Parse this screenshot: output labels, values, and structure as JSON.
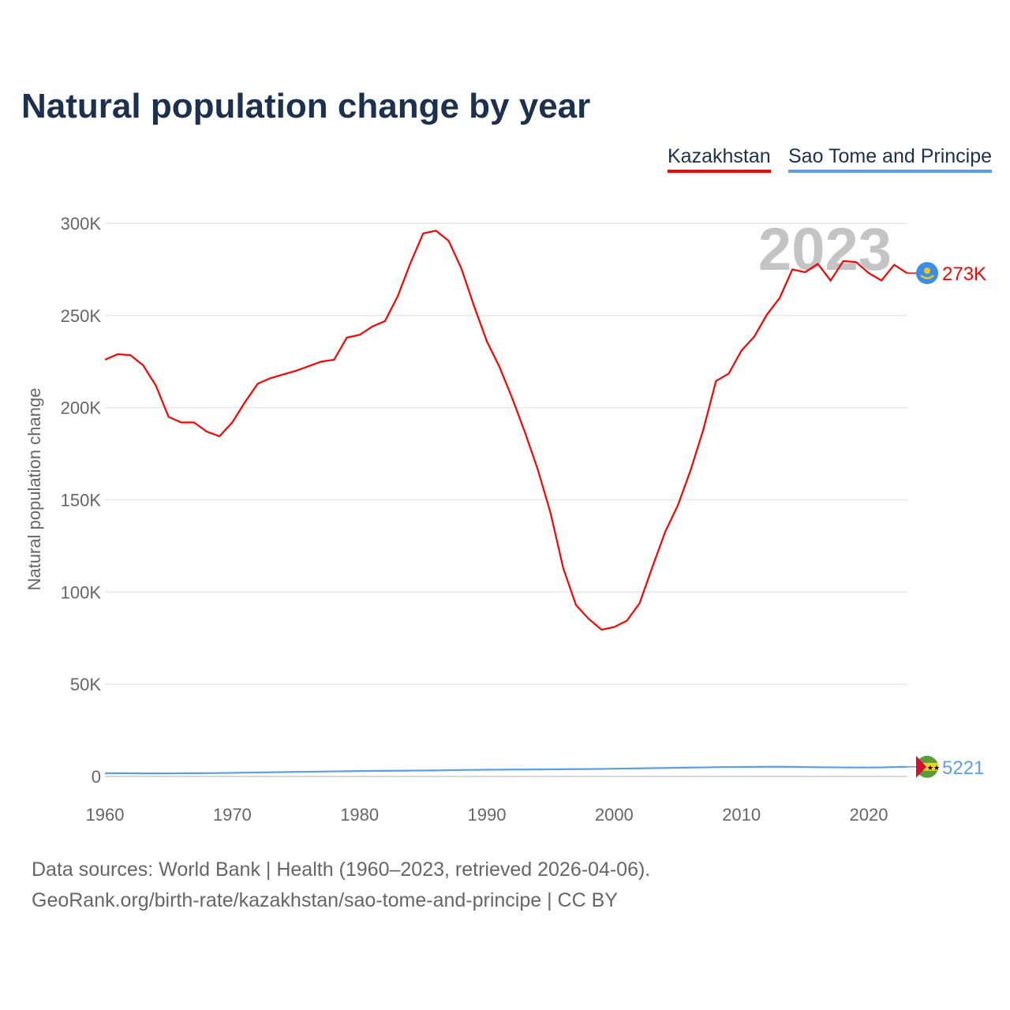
{
  "chart_data": {
    "type": "line",
    "title": "Natural population change by year",
    "ylabel": "Natural population change",
    "xlabel": "",
    "xlim": [
      1960,
      2023
    ],
    "ylim": [
      0,
      300000
    ],
    "x_ticks": [
      "1960",
      "1970",
      "1980",
      "1990",
      "2000",
      "2010",
      "2020"
    ],
    "y_ticks": [
      "0",
      "50K",
      "100K",
      "150K",
      "200K",
      "250K",
      "300K"
    ],
    "year_label": "2023",
    "grid": true,
    "legend_position": "top-right",
    "series": [
      {
        "name": "Kazakhstan",
        "color": "#ff0000",
        "end_label": "273K",
        "values": [
          226000,
          229000,
          228500,
          223000,
          212000,
          195000,
          192000,
          192000,
          187000,
          184500,
          192000,
          203000,
          213000,
          216000,
          218000,
          220000,
          222500,
          225000,
          226000,
          238000,
          239500,
          244000,
          247000,
          260500,
          278500,
          294500,
          296000,
          290500,
          275500,
          255000,
          236000,
          222000,
          205000,
          186500,
          166500,
          143000,
          113000,
          93000,
          85500,
          79600,
          81000,
          84500,
          94000,
          113500,
          132500,
          147000,
          166000,
          188000,
          214500,
          218500,
          231000,
          238500,
          250500,
          259500,
          275000,
          273500,
          278000,
          269000,
          279500,
          279000,
          273000,
          269000,
          277500,
          273000
        ]
      },
      {
        "name": "Sao Tome and Principe",
        "color": "#5c9fe8",
        "end_label": "5221",
        "values": [
          1700,
          1750,
          1700,
          1650,
          1650,
          1650,
          1700,
          1750,
          1800,
          1850,
          1950,
          2050,
          2150,
          2250,
          2350,
          2450,
          2550,
          2650,
          2750,
          2850,
          2950,
          3000,
          3050,
          3100,
          3150,
          3200,
          3250,
          3400,
          3500,
          3550,
          3650,
          3700,
          3750,
          3750,
          3800,
          3850,
          3900,
          3950,
          4000,
          4100,
          4200,
          4300,
          4400,
          4500,
          4600,
          4700,
          4800,
          4900,
          5050,
          5100,
          5150,
          5200,
          5250,
          5250,
          5200,
          5100,
          5000,
          4950,
          4900,
          4850,
          4850,
          4900,
          5100,
          5221
        ]
      }
    ]
  },
  "footer": {
    "line1": "Data sources: World Bank | Health (1960–2023, retrieved 2026-04-06).",
    "line2": "GeoRank.org/birth-rate/kazakhstan/sao-tome-and-principe | CC BY"
  }
}
